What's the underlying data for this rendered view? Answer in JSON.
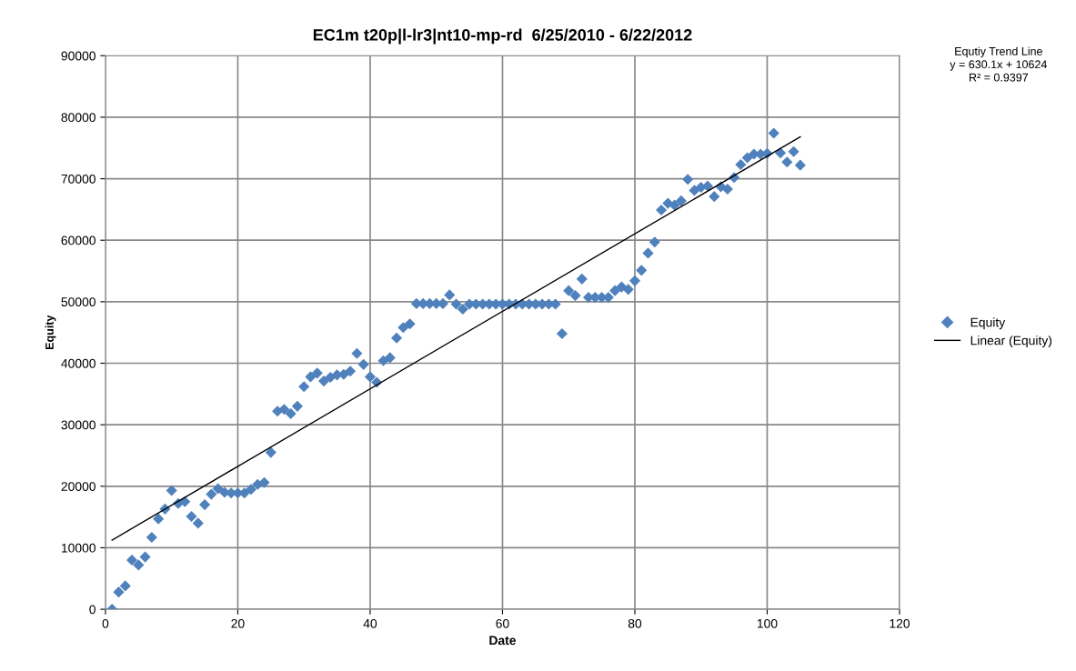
{
  "chart_data": {
    "type": "scatter",
    "title": "EC1m t20p|l-lr3|nt10-mp-rd  6/25/2010 - 6/22/2012",
    "xlabel": "Date",
    "ylabel": "Equity",
    "annotations": [
      "Equtiy Trend Line\ny = 630.1x + 10624\nR² = 0.9397"
    ],
    "x": [
      1,
      2,
      3,
      4,
      5,
      6,
      7,
      8,
      9,
      10,
      11,
      12,
      13,
      14,
      15,
      16,
      17,
      18,
      19,
      20,
      21,
      22,
      23,
      24,
      25,
      26,
      27,
      28,
      29,
      30,
      31,
      32,
      33,
      34,
      35,
      36,
      37,
      38,
      39,
      40,
      41,
      42,
      43,
      44,
      45,
      46,
      47,
      48,
      49,
      50,
      51,
      52,
      53,
      54,
      55,
      56,
      57,
      58,
      59,
      60,
      61,
      62,
      63,
      64,
      65,
      66,
      67,
      68,
      69,
      70,
      71,
      72,
      73,
      74,
      75,
      76,
      77,
      78,
      79,
      80,
      81,
      82,
      83,
      84,
      85,
      86,
      87,
      88,
      89,
      90,
      91,
      92,
      93,
      94,
      95,
      96,
      97,
      98,
      99,
      100,
      101,
      102,
      103,
      104,
      105
    ],
    "series": [
      {
        "name": "Equity",
        "color": "#4f81bd",
        "marker": "diamond",
        "values": [
          0,
          2800,
          3800,
          8000,
          7200,
          8500,
          11700,
          14700,
          16300,
          19300,
          17200,
          17500,
          15100,
          14000,
          17000,
          18700,
          19600,
          19000,
          18900,
          18900,
          18900,
          19500,
          20300,
          20600,
          25500,
          32200,
          32500,
          31800,
          33000,
          36200,
          37800,
          38400,
          37100,
          37700,
          38100,
          38200,
          38700,
          41600,
          39800,
          37800,
          36900,
          40400,
          40900,
          44100,
          45800,
          46400,
          49700,
          49700,
          49700,
          49700,
          49700,
          51100,
          49600,
          48800,
          49600,
          49600,
          49600,
          49600,
          49600,
          49600,
          49600,
          49600,
          49600,
          49600,
          49600,
          49600,
          49600,
          49600,
          44800,
          51800,
          51000,
          53700,
          50700,
          50700,
          50700,
          50700,
          51800,
          52400,
          52000,
          53400,
          55100,
          57900,
          59700,
          64900,
          66000,
          65700,
          66400,
          69900,
          68100,
          68600,
          68800,
          67100,
          68700,
          68300,
          70200,
          72300,
          73400,
          74000,
          74000,
          74100,
          77400,
          74200,
          72700,
          74400,
          72200
        ]
      },
      {
        "name": "Linear (Equity)",
        "type": "line",
        "color": "#000000",
        "marker": "none",
        "line_style": "solid",
        "x": [
          1,
          105
        ],
        "values": [
          11250,
          76800
        ]
      }
    ],
    "xlim": [
      0,
      120
    ],
    "xticks": [
      0,
      20,
      40,
      60,
      80,
      100,
      120
    ],
    "ylim": [
      0,
      90000
    ],
    "yticks": [
      0,
      10000,
      20000,
      30000,
      40000,
      50000,
      60000,
      70000,
      80000,
      90000
    ],
    "grid": true,
    "legend": "right"
  }
}
